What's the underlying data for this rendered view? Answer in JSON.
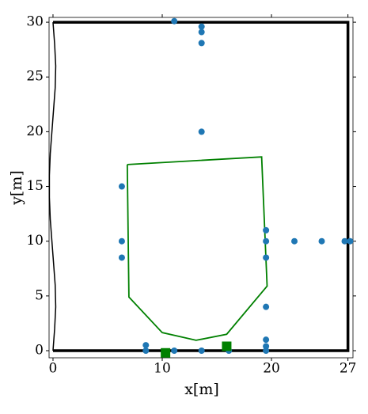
{
  "chart_data": {
    "type": "scatter",
    "xlabel": "x[m]",
    "ylabel": "y[m]",
    "xlim": [
      -0.36,
      27.46
    ],
    "ylim": [
      -0.65,
      30.44
    ],
    "xticks": [
      0,
      10,
      20,
      27
    ],
    "yticks": [
      0,
      5,
      10,
      15,
      20,
      25,
      30
    ],
    "series": [
      {
        "type": "line",
        "color": "#000000",
        "linewidth": 1.5,
        "x": [
          0,
          0.15,
          0.25,
          0.2,
          0.05,
          -0.1,
          -0.25,
          -0.33,
          -0.33,
          -0.25,
          -0.1,
          0.05,
          0.2,
          0.25,
          0.15,
          0
        ],
        "y": [
          30,
          28,
          26,
          24,
          22,
          20,
          18,
          16,
          14,
          12,
          10,
          8,
          6,
          4,
          2,
          0
        ]
      },
      {
        "type": "line",
        "color": "#000000",
        "linewidth": 3.5,
        "x": [
          0,
          27,
          27,
          0
        ],
        "y": [
          0,
          0,
          30,
          30
        ]
      },
      {
        "type": "line",
        "color": "#008000",
        "linewidth": 1.8,
        "x": [
          6.8,
          19.1,
          19.6,
          15.9,
          13.1,
          10.0,
          6.95,
          6.8
        ],
        "y": [
          17.0,
          17.7,
          5.9,
          1.5,
          0.95,
          1.65,
          4.9,
          17.0
        ]
      },
      {
        "type": "scatter",
        "marker": "circle",
        "color": "#1f77b4",
        "x": [
          11.1,
          13.6,
          13.6,
          13.6,
          13.6,
          6.3,
          6.3,
          6.3,
          19.5,
          19.5,
          19.5,
          22.1,
          24.6,
          26.7,
          27.2,
          19.5,
          19.5,
          19.5,
          19.5,
          8.5,
          8.5,
          11.1,
          13.6,
          16.1
        ],
        "y": [
          30.1,
          29.6,
          29.1,
          28.1,
          20.0,
          15.0,
          10.0,
          8.5,
          11.0,
          10.0,
          8.5,
          10.0,
          10.0,
          10.0,
          10.0,
          4.0,
          1.0,
          0.4,
          0,
          0.5,
          0,
          0,
          0,
          0
        ]
      },
      {
        "type": "scatter",
        "marker": "square",
        "color": "#008000",
        "x": [
          10.3,
          15.9
        ],
        "y": [
          -0.2,
          0.4
        ]
      }
    ]
  }
}
